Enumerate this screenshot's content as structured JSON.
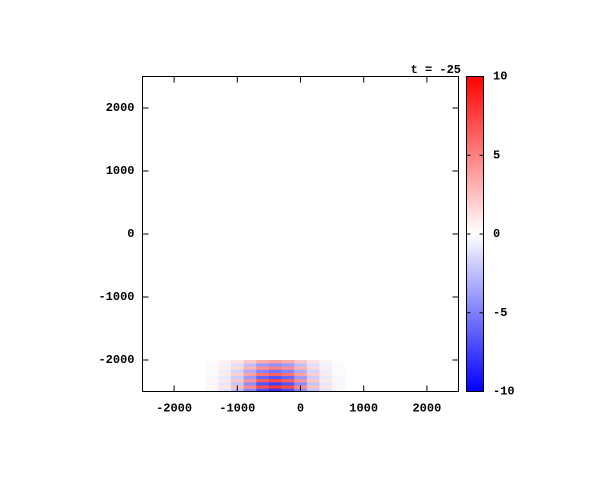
{
  "chart_data": {
    "type": "heatmap",
    "title": "t = -25",
    "x": [
      -1400,
      -1200,
      -1000,
      -800,
      -600,
      -400,
      -200,
      0,
      200,
      400,
      600
    ],
    "y": [
      -2475,
      -2425,
      -2375,
      -2325,
      -2275,
      -2225,
      -2175,
      -2125,
      -2075,
      -2025
    ],
    "z": [
      [
        -0.3,
        -1,
        -2.4,
        -4.7,
        -7,
        -8,
        -7,
        -4.7,
        -2.4,
        -1,
        -0.3
      ],
      [
        0.3,
        1,
        2.4,
        4.6,
        6.9,
        7.8,
        6.9,
        4.6,
        2.4,
        1,
        0.3
      ],
      [
        -0.3,
        -1,
        -2.3,
        -4.5,
        -6.7,
        -7.6,
        -6.7,
        -4.5,
        -2.3,
        -1,
        -0.3
      ],
      [
        0.3,
        0.9,
        2.2,
        4.2,
        6.3,
        7.2,
        6.3,
        4.2,
        2.2,
        0.9,
        0.3
      ],
      [
        -0.3,
        -0.9,
        -2,
        -4,
        -6,
        -6.8,
        -6,
        -4,
        -2,
        -0.9,
        -0.3
      ],
      [
        0.2,
        0.8,
        1.9,
        3.7,
        5.5,
        6.2,
        5.5,
        3.7,
        1.9,
        0.8,
        0.2
      ],
      [
        -0.2,
        -0.7,
        -1.7,
        -3.3,
        -4.9,
        -5.6,
        -4.9,
        -3.3,
        -1.7,
        -0.7,
        -0.2
      ],
      [
        0.2,
        0.6,
        1.5,
        3,
        4.4,
        5,
        4.4,
        3,
        1.5,
        0.6,
        0.2
      ],
      [
        -0.2,
        -0.6,
        -1.3,
        -2.6,
        -3.9,
        -4.4,
        -3.9,
        -2.6,
        -1.3,
        -0.6,
        -0.2
      ],
      [
        0.1,
        0.5,
        1.1,
        2.2,
        3.3,
        3.8,
        3.3,
        2.2,
        1.1,
        0.5,
        0.1
      ]
    ],
    "xlim": [
      -2500,
      2500
    ],
    "ylim": [
      -2500,
      2500
    ],
    "xticks": [
      -2000,
      -1000,
      0,
      1000,
      2000
    ],
    "yticks": [
      -2000,
      -1000,
      0,
      1000,
      2000
    ],
    "zlim": [
      -10,
      10
    ],
    "zticks": [
      -10,
      -5,
      0,
      5,
      10
    ],
    "colors": [
      "#0000ff",
      "#ffffff",
      "#ff0000"
    ]
  }
}
